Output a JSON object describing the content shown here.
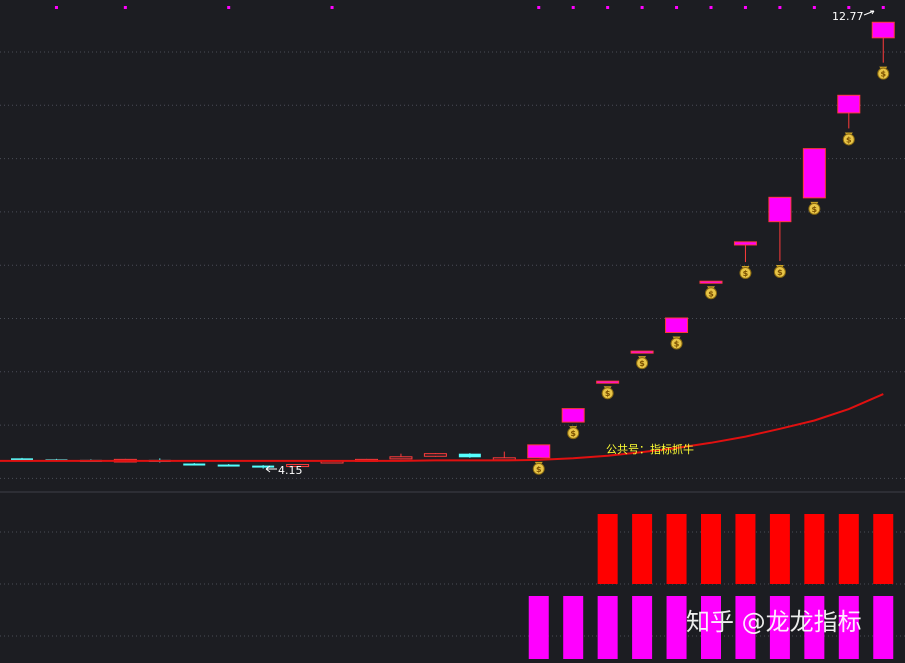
{
  "chart_data": {
    "type": "candlestick",
    "ylim": [
      3.7,
      13.2
    ],
    "grid": "dotted horizontal",
    "colors": {
      "background": "#1c1d22",
      "grid": "#4a4d57",
      "down_candle": "#54ffff",
      "up_candle_outline": "#ff3b3b",
      "limit_up_candle": "#ff00ff",
      "moving_average": "#e01010",
      "bottom_bar_red": "#ff0000",
      "bottom_bar_magenta": "#ff00ff",
      "top_dot": "#ff00ff",
      "annotation_text": "#ffff33",
      "label_text": "#ffffff"
    },
    "candles": [
      {
        "open": 4.34,
        "close": 4.35,
        "high": 4.36,
        "low": 4.33,
        "color": "cyan"
      },
      {
        "open": 4.33,
        "close": 4.33,
        "high": 4.34,
        "low": 4.32,
        "color": "cyan"
      },
      {
        "open": 4.32,
        "close": 4.31,
        "high": 4.33,
        "low": 4.3,
        "color": "cyan"
      },
      {
        "open": 4.28,
        "close": 4.33,
        "high": 4.34,
        "low": 4.27,
        "color": "red"
      },
      {
        "open": 4.32,
        "close": 4.28,
        "high": 4.35,
        "low": 4.27,
        "color": "cyan"
      },
      {
        "open": 4.25,
        "close": 4.23,
        "high": 4.26,
        "low": 4.22,
        "color": "cyan"
      },
      {
        "open": 4.23,
        "close": 4.22,
        "high": 4.24,
        "low": 4.21,
        "color": "cyan"
      },
      {
        "open": 4.21,
        "close": 4.19,
        "high": 4.22,
        "low": 4.15,
        "color": "cyan"
      },
      {
        "open": 4.21,
        "close": 4.23,
        "high": 4.24,
        "low": 4.2,
        "color": "red"
      },
      {
        "open": 4.26,
        "close": 4.3,
        "high": 4.31,
        "low": 4.25,
        "color": "red"
      },
      {
        "open": 4.3,
        "close": 4.33,
        "high": 4.34,
        "low": 4.29,
        "color": "red"
      },
      {
        "open": 4.34,
        "close": 4.38,
        "high": 4.44,
        "low": 4.33,
        "color": "red"
      },
      {
        "open": 4.39,
        "close": 4.44,
        "high": 4.45,
        "low": 4.38,
        "color": "red"
      },
      {
        "open": 4.44,
        "close": 4.37,
        "high": 4.45,
        "low": 4.36,
        "color": "cyan"
      },
      {
        "open": 4.35,
        "close": 4.36,
        "high": 4.48,
        "low": 4.34,
        "color": "red"
      },
      {
        "open": 4.36,
        "close": 4.61,
        "high": 4.61,
        "low": 4.36,
        "color": "magenta"
      },
      {
        "open": 5.05,
        "close": 5.31,
        "high": 5.31,
        "low": 5.05,
        "color": "magenta"
      },
      {
        "open": 5.83,
        "close": 5.84,
        "high": 5.84,
        "low": 5.82,
        "color": "magenta"
      },
      {
        "open": 6.41,
        "close": 6.42,
        "high": 6.42,
        "low": 6.4,
        "color": "magenta"
      },
      {
        "open": 6.78,
        "close": 7.06,
        "high": 7.06,
        "low": 6.78,
        "color": "magenta"
      },
      {
        "open": 7.76,
        "close": 7.77,
        "high": 7.77,
        "low": 7.75,
        "color": "magenta"
      },
      {
        "open": 8.47,
        "close": 8.53,
        "high": 8.53,
        "low": 8.14,
        "color": "magenta"
      },
      {
        "open": 8.92,
        "close": 9.39,
        "high": 9.39,
        "low": 8.16,
        "color": "magenta"
      },
      {
        "open": 9.38,
        "close": 10.33,
        "high": 10.33,
        "low": 9.38,
        "color": "magenta"
      },
      {
        "open": 11.02,
        "close": 11.36,
        "high": 11.36,
        "low": 10.72,
        "color": "magenta"
      },
      {
        "open": 12.47,
        "close": 12.77,
        "high": 12.77,
        "low": 11.99,
        "color": "magenta"
      }
    ],
    "moving_average": [
      4.3,
      4.3,
      4.3,
      4.3,
      4.3,
      4.3,
      4.3,
      4.3,
      4.3,
      4.3,
      4.3,
      4.3,
      4.31,
      4.31,
      4.31,
      4.32,
      4.35,
      4.4,
      4.47,
      4.55,
      4.65,
      4.77,
      4.92,
      5.08,
      5.3,
      5.59
    ],
    "signal_icon": "money-bag-icon",
    "signal_candles": [
      15,
      16,
      17,
      18,
      19,
      20,
      21,
      22,
      23,
      24,
      25
    ],
    "top_dot_candles": [
      1,
      3,
      6,
      9,
      15,
      16,
      17,
      18,
      19,
      20,
      21,
      22,
      23,
      24,
      25
    ],
    "annotations": {
      "high_label": "12.77",
      "low_label": "4.15",
      "wechat_label": "公共号：指标抓牛",
      "watermark": "知乎 @龙龙指标"
    },
    "indicator_red_bars": [
      17,
      18,
      19,
      20,
      21,
      22,
      23,
      24,
      25
    ],
    "indicator_magenta_bars": [
      15,
      16,
      17,
      18,
      19,
      20,
      21,
      22,
      23,
      24,
      25
    ]
  }
}
